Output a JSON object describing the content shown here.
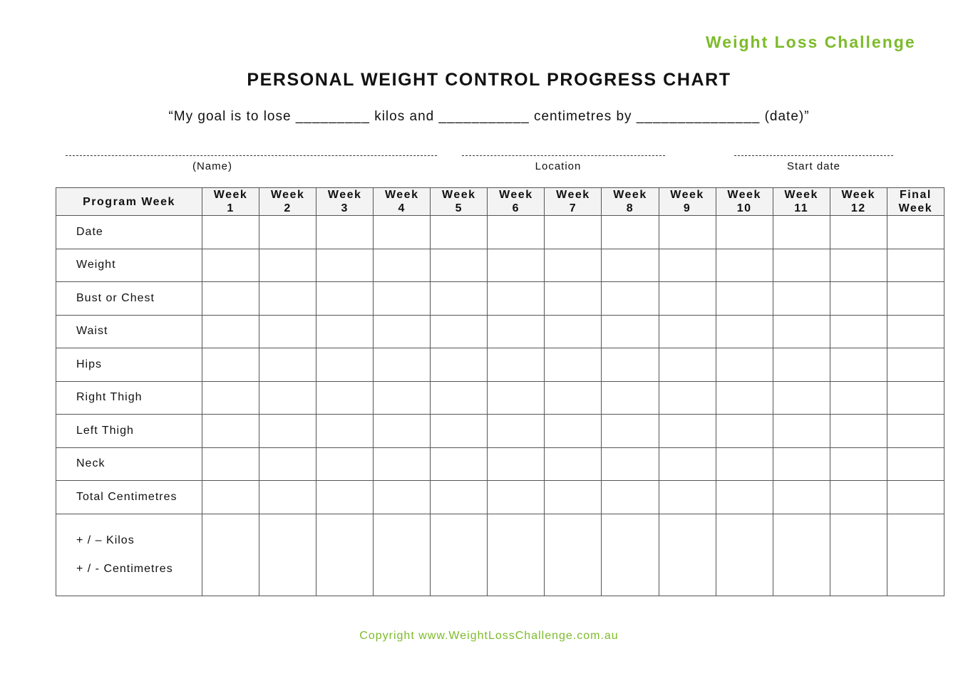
{
  "header": {
    "brand": "Weight Loss Challenge",
    "title": "PERSONAL WEIGHT CONTROL PROGRESS CHART",
    "goal": "“My goal is to lose _________ kilos and ___________ centimetres by _______________ (date)”"
  },
  "fields": [
    {
      "label": "(Name)"
    },
    {
      "label": "Location"
    },
    {
      "label": "Start date"
    }
  ],
  "table": {
    "corner": "Program Week",
    "columns": [
      [
        "Week",
        "1"
      ],
      [
        "Week",
        "2"
      ],
      [
        "Week",
        "3"
      ],
      [
        "Week",
        "4"
      ],
      [
        "Week",
        "5"
      ],
      [
        "Week",
        "6"
      ],
      [
        "Week",
        "7"
      ],
      [
        "Week",
        "8"
      ],
      [
        "Week",
        "9"
      ],
      [
        "Week",
        "10"
      ],
      [
        "Week",
        "11"
      ],
      [
        "Week",
        "12"
      ],
      [
        "Final",
        "Week"
      ]
    ],
    "rows": [
      "Date",
      "Weight",
      "Bust or Chest",
      "Waist",
      "Hips",
      "Right Thigh",
      "Left Thigh",
      "Neck",
      "Total Centimetres"
    ],
    "last_row": [
      "+ / – Kilos",
      "+ / - Centimetres"
    ]
  },
  "footer": {
    "copyright": "Copyright www.WeightLossChallenge.com.au"
  },
  "colors": {
    "brand_green": "#7dbb2a",
    "header_bg": "#f3f3f3"
  }
}
